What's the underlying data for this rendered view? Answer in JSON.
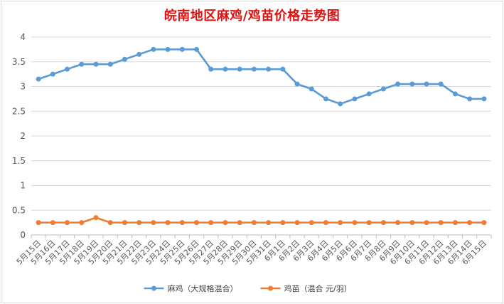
{
  "chart_data": {
    "type": "line",
    "title": "皖南地区麻鸡/鸡苗价格走势图",
    "categories": [
      "5月15日",
      "5月16日",
      "5月17日",
      "5月18日",
      "5月19日",
      "5月20日",
      "5月21日",
      "5月22日",
      "5月23日",
      "5月24日",
      "5月25日",
      "5月26日",
      "5月27日",
      "5月28日",
      "5月29日",
      "5月30日",
      "5月31日",
      "6月1日",
      "6月2日",
      "6月3日",
      "6月4日",
      "6月5日",
      "6月6日",
      "6月7日",
      "6月8日",
      "6月9日",
      "6月10日",
      "6月11日",
      "6月12日",
      "6月13日",
      "6月14日",
      "6月15日"
    ],
    "series": [
      {
        "name": "麻鸡（大规格混合）",
        "color": "#5b9bd5",
        "values": [
          3.15,
          3.25,
          3.35,
          3.45,
          3.45,
          3.45,
          3.55,
          3.65,
          3.75,
          3.75,
          3.75,
          3.75,
          3.35,
          3.35,
          3.35,
          3.35,
          3.35,
          3.35,
          3.05,
          2.95,
          2.75,
          2.65,
          2.75,
          2.85,
          2.95,
          3.05,
          3.05,
          3.05,
          3.05,
          2.85,
          2.75,
          2.75
        ]
      },
      {
        "name": "鸡苗（混合 元/羽）",
        "color": "#ed7d31",
        "values": [
          0.25,
          0.25,
          0.25,
          0.25,
          0.35,
          0.25,
          0.25,
          0.25,
          0.25,
          0.25,
          0.25,
          0.25,
          0.25,
          0.25,
          0.25,
          0.25,
          0.25,
          0.25,
          0.25,
          0.25,
          0.25,
          0.25,
          0.25,
          0.25,
          0.25,
          0.25,
          0.25,
          0.25,
          0.25,
          0.25,
          0.25,
          0.25
        ]
      }
    ],
    "ylim": [
      0,
      4
    ],
    "yticks": [
      "0",
      "0.5",
      "1",
      "1.5",
      "2",
      "2.5",
      "3",
      "3.5",
      "4"
    ],
    "grid": true,
    "legend_position": "bottom"
  }
}
